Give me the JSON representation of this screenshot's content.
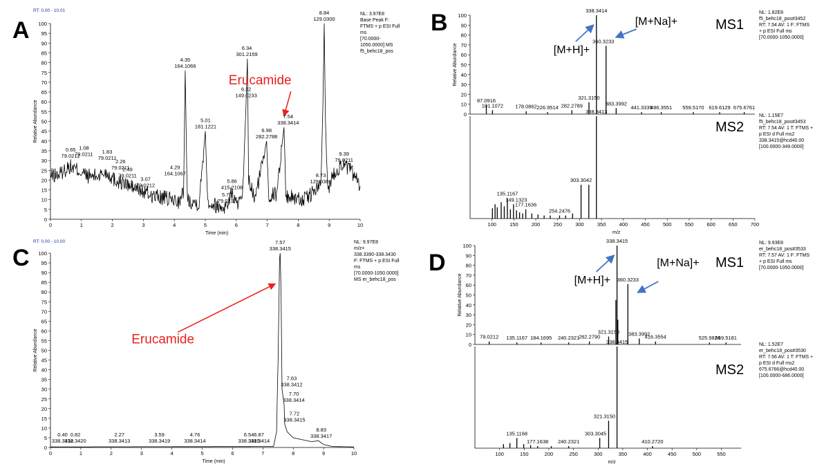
{
  "figure": {
    "panel_letters": [
      "A",
      "B",
      "C",
      "D"
    ],
    "colors": {
      "trace": "#000000",
      "red_label": "#e8211d",
      "blue_arrow": "#4472c4",
      "header_blue": "#1f2fa8",
      "peak_tag_green": "#2e8b2e"
    }
  },
  "chart_data": [
    {
      "panel": "A",
      "type": "line",
      "rt_range": "RT: 0.00 - 10.01",
      "info": [
        "NL: 3.97E8",
        "Base Peak F:",
        "FTMS + p ESI Full",
        "ms",
        "[70.0000-",
        "1050.0000] MS",
        "f5_behc18_pos"
      ],
      "xlabel": "Time (min)",
      "ylabel": "Relative Abundance",
      "xlim": [
        0,
        10
      ],
      "ylim": [
        0,
        100
      ],
      "xticks": [
        "0",
        "1",
        "2",
        "3",
        "4",
        "5",
        "6",
        "7",
        "8",
        "9",
        "10"
      ],
      "yticks": [
        "0",
        "5",
        "10",
        "15",
        "20",
        "25",
        "30",
        "35",
        "40",
        "45",
        "50",
        "55",
        "60",
        "65",
        "70",
        "75",
        "80",
        "85",
        "90",
        "95",
        "100"
      ],
      "baseline_noise": true,
      "points": [
        [
          0,
          22
        ],
        [
          0.3,
          23
        ],
        [
          0.6,
          27
        ],
        [
          0.9,
          25
        ],
        [
          1.2,
          22
        ],
        [
          1.5,
          22
        ],
        [
          1.8,
          24
        ],
        [
          2.1,
          20
        ],
        [
          2.4,
          18
        ],
        [
          2.7,
          16
        ],
        [
          3,
          14
        ],
        [
          3.3,
          12
        ],
        [
          3.6,
          11
        ],
        [
          3.9,
          10
        ],
        [
          4.2,
          9
        ],
        [
          4.3,
          15
        ],
        [
          4.35,
          76
        ],
        [
          4.42,
          10
        ],
        [
          4.8,
          8
        ],
        [
          5,
          45
        ],
        [
          5.08,
          9
        ],
        [
          5.5,
          6
        ],
        [
          5.7,
          7
        ],
        [
          5.86,
          14
        ],
        [
          6,
          8
        ],
        [
          6.2,
          9
        ],
        [
          6.32,
          61
        ],
        [
          6.36,
          82
        ],
        [
          6.4,
          20
        ],
        [
          6.6,
          10
        ],
        [
          6.98,
          40
        ],
        [
          7.05,
          12
        ],
        [
          7.3,
          13
        ],
        [
          7.54,
          47
        ],
        [
          7.6,
          12
        ],
        [
          7.9,
          11
        ],
        [
          8.2,
          10
        ],
        [
          8.5,
          14
        ],
        [
          8.73,
          17
        ],
        [
          8.8,
          60
        ],
        [
          8.84,
          100
        ],
        [
          8.88,
          50
        ],
        [
          8.95,
          15
        ],
        [
          9.1,
          22
        ],
        [
          9.39,
          28
        ],
        [
          9.7,
          25
        ],
        [
          10,
          17
        ]
      ],
      "peaks": [
        {
          "x": 0.65,
          "y": 30,
          "rt": "0.65",
          "mz": "79.0212"
        },
        {
          "x": 1.08,
          "y": 31,
          "rt": "1.08",
          "mz": "79.0211"
        },
        {
          "x": 1.83,
          "y": 29,
          "rt": "1.83",
          "mz": "79.0211"
        },
        {
          "x": 2.26,
          "y": 24,
          "rt": "2.26",
          "mz": "79.0211"
        },
        {
          "x": 2.49,
          "y": 20,
          "rt": "2.49",
          "mz": "79.0211"
        },
        {
          "x": 3.07,
          "y": 15,
          "rt": "3.07",
          "mz": "79.0212"
        },
        {
          "x": 4.29,
          "y": 21,
          "rt": "4.29",
          "mz": "164.1067"
        },
        {
          "x": 4.35,
          "y": 76,
          "rt": "4.35",
          "mz": "164.1066"
        },
        {
          "x": 5.01,
          "y": 45,
          "rt": "5.01",
          "mz": "181.1221"
        },
        {
          "x": 5.7,
          "y": 7,
          "rt": "5.70",
          "mz": "79.0212"
        },
        {
          "x": 5.86,
          "y": 14,
          "rt": "5.86",
          "mz": "415.2108"
        },
        {
          "x": 6.32,
          "y": 61,
          "rt": "6.32",
          "mz": "149.0233"
        },
        {
          "x": 6.34,
          "y": 82,
          "rt": "6.34",
          "mz": "301.2159"
        },
        {
          "x": 6.98,
          "y": 40,
          "rt": "6.98",
          "mz": "282.2788"
        },
        {
          "x": 7.54,
          "y": 47,
          "rt": "7.54",
          "mz": "338.3414"
        },
        {
          "x": 8.73,
          "y": 17,
          "rt": "8.73",
          "mz": "129.0301"
        },
        {
          "x": 8.84,
          "y": 100,
          "rt": "8.84",
          "mz": "129.0300"
        },
        {
          "x": 9.39,
          "y": 28,
          "rt": "9.39",
          "mz": "79.0211"
        }
      ],
      "annotations": [
        {
          "text": "Erucamide",
          "target_x": 7.54,
          "target_y": 47
        }
      ]
    },
    {
      "panel": "B",
      "type": "bar",
      "subtitle": "MS1",
      "info": [
        "NL: 1.82E8",
        "f5_behc18_pos#3452",
        "RT: 7.54  AV: 1 F: FTMS",
        "+ p ESI Full ms",
        "[70.0000-1050.0000]"
      ],
      "ylabel": "Relative Abundance",
      "xlim": [
        50,
        700
      ],
      "ylim": [
        0,
        100
      ],
      "yticks": [
        "0",
        "10",
        "20",
        "30",
        "40",
        "50",
        "60",
        "70",
        "80",
        "90",
        "100"
      ],
      "peaks": [
        [
          87.0916,
          9
        ],
        [
          101.1072,
          4
        ],
        [
          178.0862,
          3
        ],
        [
          226.9514,
          2
        ],
        [
          282.2789,
          4
        ],
        [
          321.315,
          12
        ],
        [
          338.3414,
          100
        ],
        [
          360.3233,
          69
        ],
        [
          383.3992,
          6
        ],
        [
          441.3335,
          2
        ],
        [
          486.3551,
          2
        ],
        [
          559.517,
          2
        ],
        [
          619.6129,
          2
        ],
        [
          675.6761,
          2
        ]
      ],
      "peak_labels": [
        {
          "mz": "338.3414",
          "x": 338.3414,
          "y": 100
        },
        {
          "mz": "360.3233",
          "x": 360.3233,
          "y": 69
        },
        {
          "mz": "87.0916",
          "x": 87.0916,
          "y": 9
        },
        {
          "mz": "101.1072",
          "x": 101.1072,
          "y": 4
        },
        {
          "mz": "178.0862",
          "x": 178.0862,
          "y": 3
        },
        {
          "mz": "226.9514",
          "x": 226.9514,
          "y": 2
        },
        {
          "mz": "282.2789",
          "x": 282.2789,
          "y": 4
        },
        {
          "mz": "321.3150",
          "x": 321.315,
          "y": 12
        },
        {
          "mz": "383.3992",
          "x": 383.3992,
          "y": 6
        },
        {
          "mz": "441.3335",
          "x": 441.3335,
          "y": 2
        },
        {
          "mz": "486.3551",
          "x": 486.3551,
          "y": 2
        },
        {
          "mz": "559.5170",
          "x": 559.517,
          "y": 2
        },
        {
          "mz": "619.6129",
          "x": 619.6129,
          "y": 2
        },
        {
          "mz": "675.6761",
          "x": 675.6761,
          "y": 2
        }
      ],
      "annotations": [
        {
          "text": "[M+H]+",
          "target_x": 338.3414
        },
        {
          "text": "[M+Na]+",
          "target_x": 360.3233
        }
      ]
    },
    {
      "panel": "B",
      "type": "bar",
      "subtitle": "MS2",
      "info": [
        "NL: 1.15E7",
        "f5_behc18_pos#3453",
        "RT: 7.54  AV: 1 T: FTMS +",
        "p ESI d Full ms2",
        "338.3415@hcd40.00",
        "[100.0000-349.0000]"
      ],
      "xlabel": "m/z",
      "xlim": [
        50,
        700
      ],
      "ylim": [
        0,
        100
      ],
      "xticks": [
        "100",
        "150",
        "200",
        "250",
        "300",
        "350",
        "400",
        "450",
        "500",
        "550",
        "600",
        "650",
        "700"
      ],
      "peaks": [
        [
          101,
          10
        ],
        [
          107,
          14
        ],
        [
          112,
          11
        ],
        [
          121,
          16
        ],
        [
          128,
          12
        ],
        [
          135.1167,
          20
        ],
        [
          142,
          9
        ],
        [
          149.1323,
          14
        ],
        [
          156,
          8
        ],
        [
          163,
          6
        ],
        [
          170,
          5
        ],
        [
          177.1636,
          9
        ],
        [
          191,
          5
        ],
        [
          205,
          4
        ],
        [
          219,
          3
        ],
        [
          233,
          3
        ],
        [
          254.2476,
          3
        ],
        [
          268,
          3
        ],
        [
          284,
          5
        ],
        [
          303.3042,
          33
        ],
        [
          321,
          33
        ],
        [
          338.3413,
          100
        ]
      ],
      "peak_labels": [
        {
          "mz": "338.3413",
          "x": 338.3413,
          "y": 100
        },
        {
          "mz": "303.3042",
          "x": 303.3042,
          "y": 33
        },
        {
          "mz": "135.1167",
          "x": 135.1167,
          "y": 20
        },
        {
          "mz": "149.1323",
          "x": 149.1323,
          "y": 14
        },
        {
          "mz": "177.1636",
          "x": 177.1636,
          "y": 9
        },
        {
          "mz": "254.2476",
          "x": 254.2476,
          "y": 3
        }
      ]
    },
    {
      "panel": "C",
      "type": "line",
      "rt_range": "RT: 0.00 - 10.00",
      "info": [
        "NL: 9.97E8",
        "m/z=",
        "338.3390-338.3430",
        "F: FTMS + p ESI Full",
        "ms",
        "[70.0000-1050.0000]",
        "MS er_behc18_pos"
      ],
      "xlabel": "Time (min)",
      "ylabel": "Relative Abundance",
      "xlim": [
        0,
        10
      ],
      "ylim": [
        0,
        100
      ],
      "xticks": [
        "0",
        "1",
        "2",
        "3",
        "4",
        "5",
        "6",
        "7",
        "8",
        "9",
        "10"
      ],
      "yticks": [
        "0",
        "5",
        "10",
        "15",
        "20",
        "25",
        "30",
        "35",
        "40",
        "45",
        "50",
        "55",
        "60",
        "65",
        "70",
        "75",
        "80",
        "85",
        "90",
        "95",
        "100"
      ],
      "points": [
        [
          0,
          0.3
        ],
        [
          7.35,
          0.5
        ],
        [
          7.45,
          8
        ],
        [
          7.5,
          45
        ],
        [
          7.55,
          97
        ],
        [
          7.57,
          100
        ],
        [
          7.6,
          78
        ],
        [
          7.63,
          30
        ],
        [
          7.7,
          22
        ],
        [
          7.72,
          12
        ],
        [
          7.8,
          8
        ],
        [
          8,
          5
        ],
        [
          8.3,
          4
        ],
        [
          8.6,
          3
        ],
        [
          8.83,
          3.5
        ],
        [
          9,
          1.5
        ],
        [
          9.3,
          0.5
        ],
        [
          10,
          0.3
        ]
      ],
      "peaks": [
        {
          "x": 0.4,
          "y": 1,
          "rt": "0.40",
          "mz": "338.3412"
        },
        {
          "x": 0.82,
          "y": 1,
          "rt": "0.82",
          "mz": "338.3420"
        },
        {
          "x": 2.27,
          "y": 1,
          "rt": "2.27",
          "mz": "338.3413"
        },
        {
          "x": 3.59,
          "y": 1,
          "rt": "3.59",
          "mz": "338.3419"
        },
        {
          "x": 4.76,
          "y": 1,
          "rt": "4.76",
          "mz": "338.3414"
        },
        {
          "x": 6.54,
          "y": 1,
          "rt": "6.54",
          "mz": "338.3415"
        },
        {
          "x": 6.87,
          "y": 1,
          "rt": "6.87",
          "mz": "338.3414"
        },
        {
          "x": 7.57,
          "y": 100,
          "rt": "7.57",
          "mz": "338.3415"
        },
        {
          "x": 7.63,
          "y": 30,
          "rt": "7.63",
          "mz": "338.3412"
        },
        {
          "x": 7.7,
          "y": 22,
          "rt": "7.70",
          "mz": "338.3414"
        },
        {
          "x": 7.72,
          "y": 12,
          "rt": "7.72",
          "mz": "338.3415"
        },
        {
          "x": 8.83,
          "y": 3.5,
          "rt": "8.83",
          "mz": "338.3417"
        }
      ],
      "annotations": [
        {
          "text": "Erucamide",
          "target_x": 7.5,
          "target_y": 70
        }
      ]
    },
    {
      "panel": "D",
      "type": "bar",
      "subtitle": "MS1",
      "info": [
        "NL: 9.93E8",
        "er_behc18_pos#3533",
        "RT: 7.57  AV: 1 F: FTMS",
        "+ p ESI Full ms",
        "[70.0000-1050.0000]"
      ],
      "ylabel": "Relative Abundance",
      "xlim": [
        50,
        590
      ],
      "ylim": [
        0,
        100
      ],
      "yticks": [
        "0",
        "10",
        "20",
        "30",
        "40",
        "50",
        "60",
        "70",
        "80",
        "90",
        "100"
      ],
      "peaks": [
        [
          79.0212,
          3
        ],
        [
          135.1167,
          2
        ],
        [
          184.1695,
          2
        ],
        [
          240.2321,
          2
        ],
        [
          282.279,
          3
        ],
        [
          321.315,
          8
        ],
        [
          336,
          45
        ],
        [
          338.3415,
          100
        ],
        [
          340,
          25
        ],
        [
          360.3233,
          61
        ],
        [
          383.3992,
          6
        ],
        [
          416.3554,
          3
        ],
        [
          525.9824,
          2
        ],
        [
          559.5181,
          2
        ]
      ],
      "peak_labels": [
        {
          "mz": "338.3415",
          "x": 338.3415,
          "y": 100
        },
        {
          "mz": "360.3233",
          "x": 360.3233,
          "y": 61
        },
        {
          "mz": "79.0212",
          "x": 79.0212,
          "y": 3
        },
        {
          "mz": "135.1167",
          "x": 135.1167,
          "y": 2
        },
        {
          "mz": "184.1695",
          "x": 184.1695,
          "y": 2
        },
        {
          "mz": "240.2321",
          "x": 240.2321,
          "y": 2
        },
        {
          "mz": "282.2790",
          "x": 282.279,
          "y": 3
        },
        {
          "mz": "321.3150",
          "x": 321.315,
          "y": 8
        },
        {
          "mz": "383.3992",
          "x": 383.3992,
          "y": 6
        },
        {
          "mz": "416.3554",
          "x": 416.3554,
          "y": 3
        },
        {
          "mz": "525.9824",
          "x": 525.9824,
          "y": 2
        },
        {
          "mz": "559.5181",
          "x": 559.5181,
          "y": 2
        }
      ],
      "annotations": [
        {
          "text": "[M+H]+",
          "target_x": 338.3415
        },
        {
          "text": "[M+Na]+",
          "target_x": 360.3233
        }
      ]
    },
    {
      "panel": "D",
      "type": "bar",
      "subtitle": "MS2",
      "info": [
        "NL: 1.52E7",
        "er_behc18_pos#3530",
        "RT: 7.56  AV: 1 T: FTMS +",
        "p ESI d Full ms2",
        "675.6766@hcd40.00",
        "[100.0000-686.0000]"
      ],
      "xlabel": "m/z",
      "xlim": [
        50,
        590
      ],
      "ylim": [
        0,
        100
      ],
      "xticks": [
        "100",
        "150",
        "200",
        "250",
        "300",
        "350",
        "400",
        "450",
        "500",
        "550"
      ],
      "peaks": [
        [
          108,
          4
        ],
        [
          121,
          5
        ],
        [
          135.1168,
          10
        ],
        [
          149,
          4
        ],
        [
          163,
          3
        ],
        [
          177.1638,
          2
        ],
        [
          205,
          2
        ],
        [
          240.2321,
          2
        ],
        [
          303.3045,
          10
        ],
        [
          321.315,
          27
        ],
        [
          338.3415,
          100
        ],
        [
          410.272,
          2
        ]
      ],
      "peak_labels": [
        {
          "mz": "338.3415",
          "x": 338.3415,
          "y": 100
        },
        {
          "mz": "321.3150",
          "x": 321.315,
          "y": 27
        },
        {
          "mz": "303.3045",
          "x": 303.3045,
          "y": 10
        },
        {
          "mz": "135.1168",
          "x": 135.1168,
          "y": 10
        },
        {
          "mz": "177.1638",
          "x": 177.1638,
          "y": 2
        },
        {
          "mz": "240.2321",
          "x": 240.2321,
          "y": 2
        },
        {
          "mz": "410.2720",
          "x": 410.272,
          "y": 2
        }
      ]
    }
  ]
}
